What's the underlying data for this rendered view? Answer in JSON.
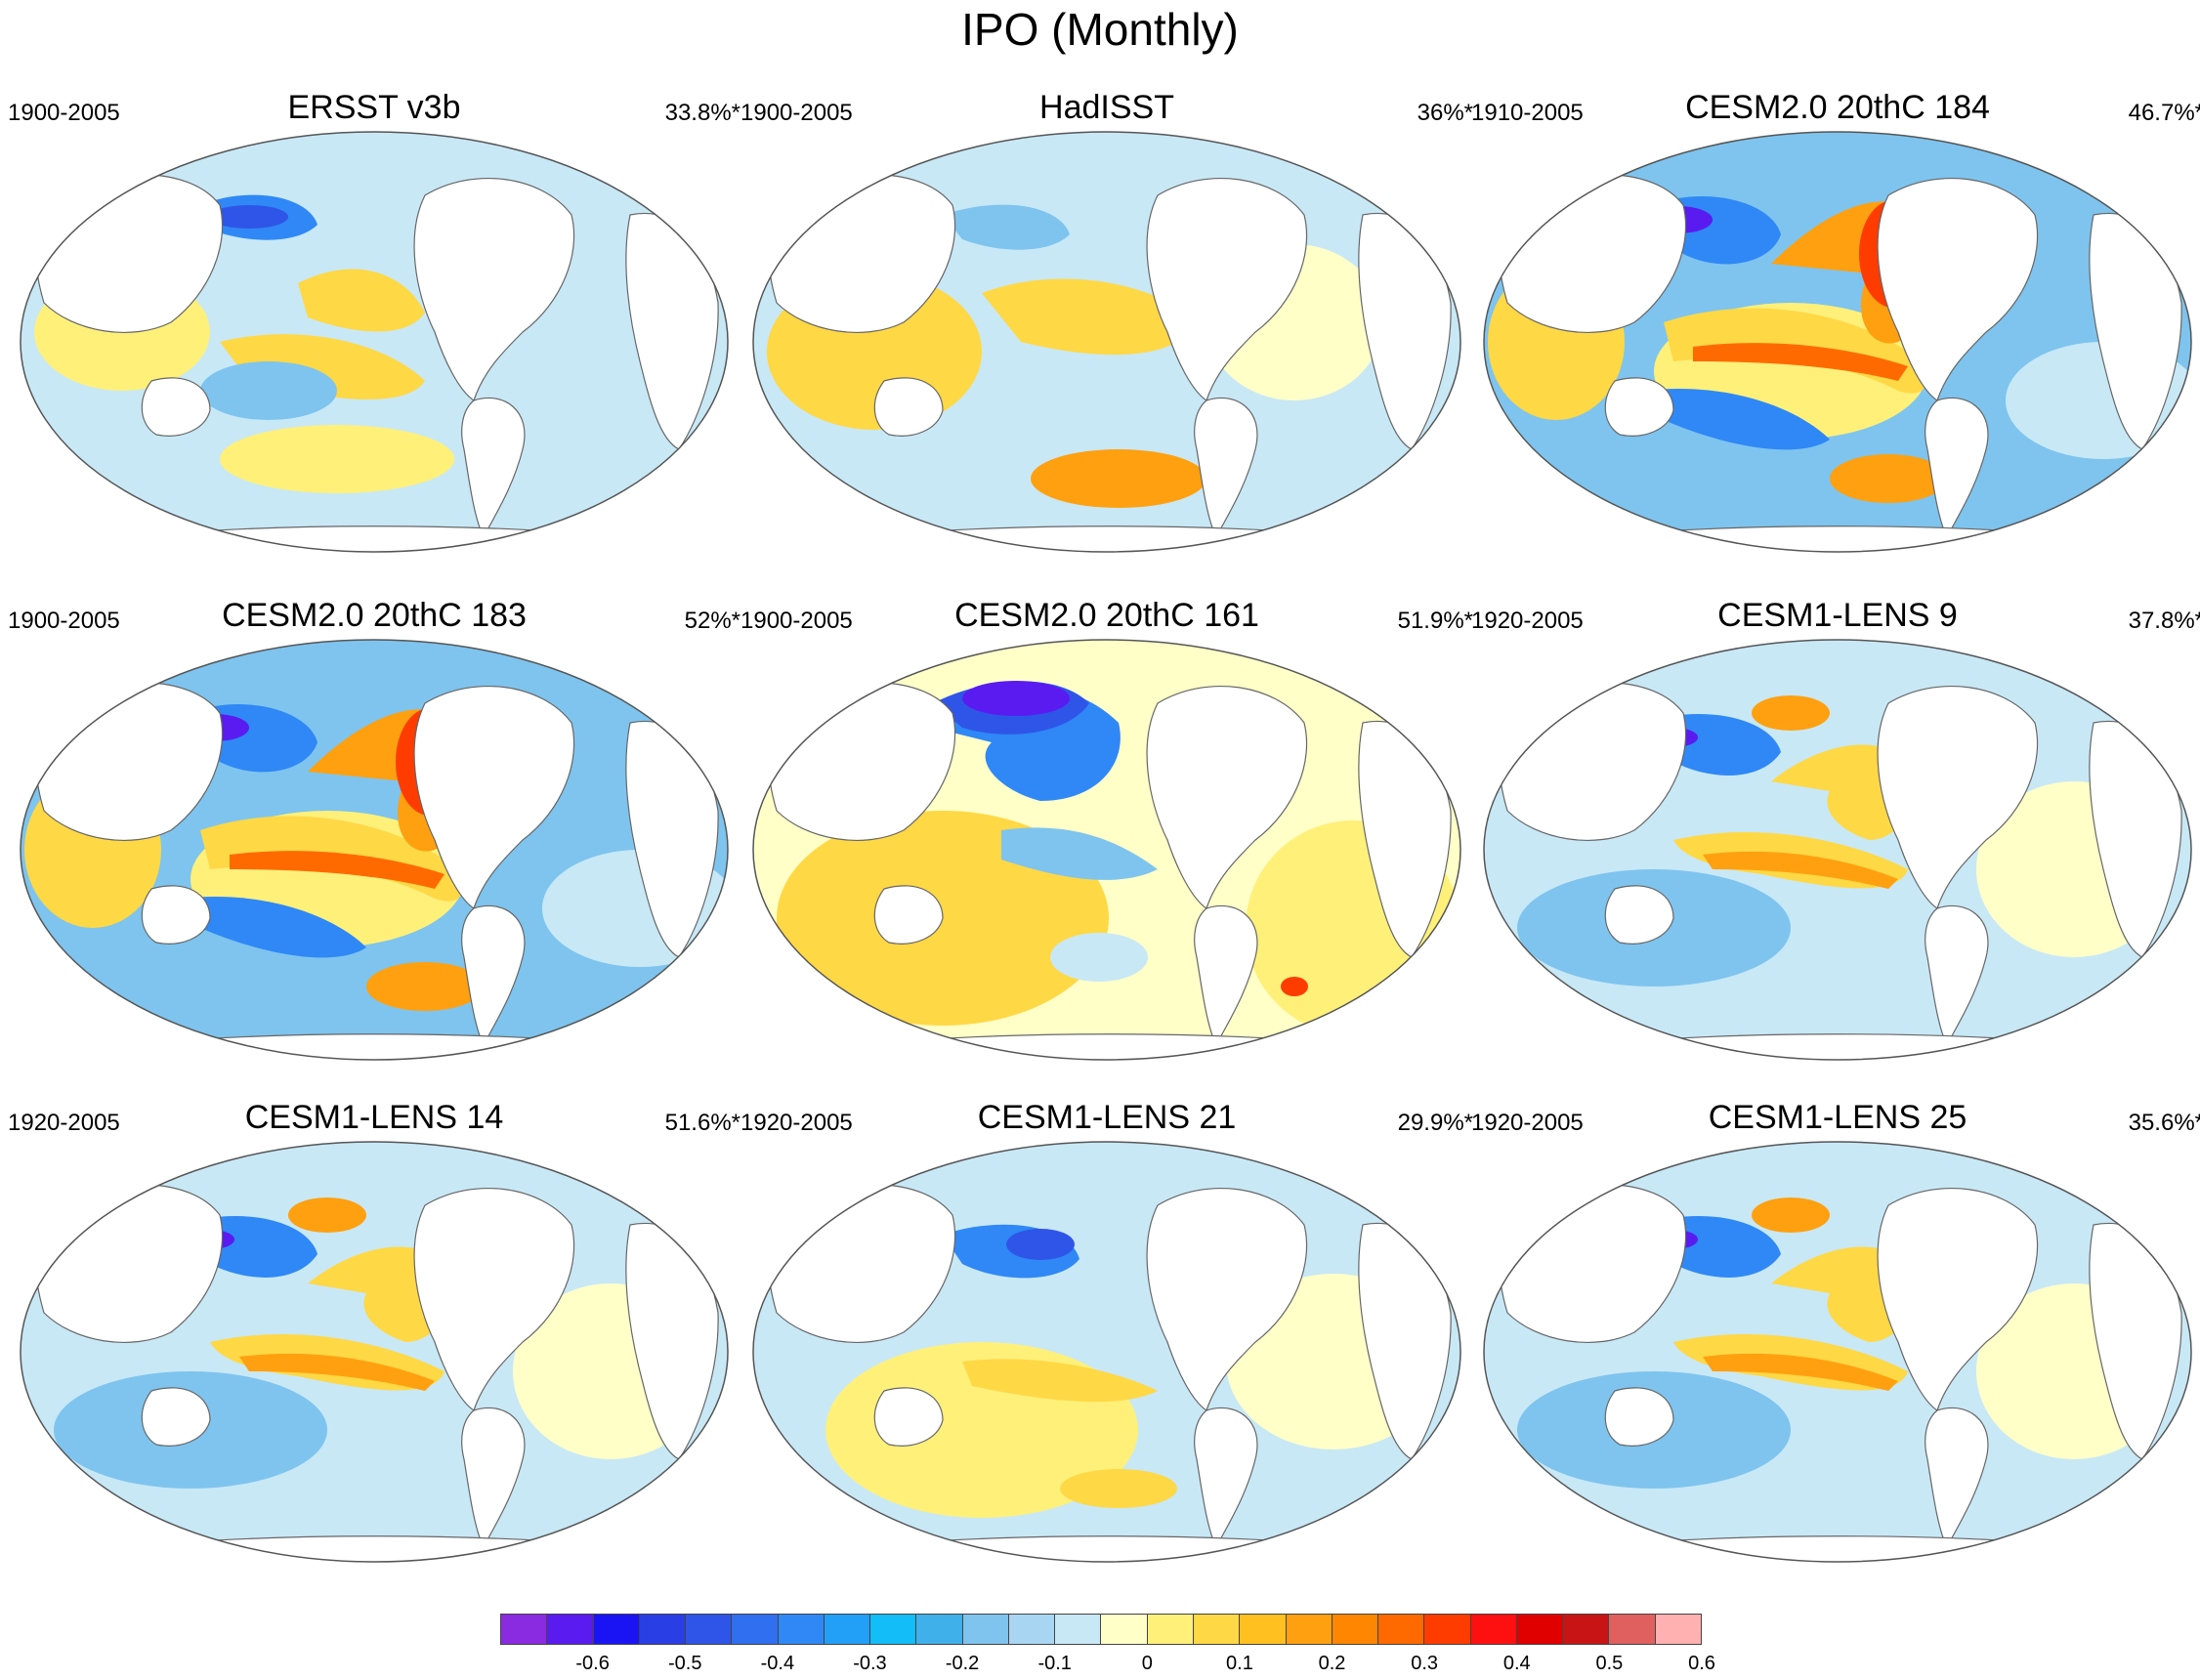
{
  "figure": {
    "title": "IPO (Monthly)"
  },
  "panels": [
    {
      "title": "ERSST v3b",
      "period": "1900-2005",
      "variance": "33.8%*",
      "pattern": "obs1"
    },
    {
      "title": "HadISST",
      "period": "1900-2005",
      "variance": "36%*",
      "pattern": "obs2"
    },
    {
      "title": "CESM2.0 20thC 184",
      "period": "1910-2005",
      "variance": "46.7%*",
      "pattern": "strong"
    },
    {
      "title": "CESM2.0 20thC 183",
      "period": "1900-2005",
      "variance": "52%*",
      "pattern": "strong"
    },
    {
      "title": "CESM2.0 20thC 161",
      "period": "1900-2005",
      "variance": "51.9%*",
      "pattern": "inverse"
    },
    {
      "title": "CESM1-LENS 9",
      "period": "1920-2005",
      "variance": "37.8%*",
      "pattern": "moderate"
    },
    {
      "title": "CESM1-LENS 14",
      "period": "1920-2005",
      "variance": "51.6%*",
      "pattern": "moderate"
    },
    {
      "title": "CESM1-LENS 21",
      "period": "1920-2005",
      "variance": "29.9%*",
      "pattern": "weak"
    },
    {
      "title": "CESM1-LENS 25",
      "period": "1920-2005",
      "variance": "35.6%*",
      "pattern": "moderate"
    }
  ],
  "colorbar": {
    "colors": [
      "#8a2be2",
      "#5a1bf0",
      "#1a14f5",
      "#2a3ee6",
      "#2f55e8",
      "#2f6ff0",
      "#2f88f5",
      "#229ff7",
      "#12bdf8",
      "#3fb0ea",
      "#7ec4ee",
      "#a8d6f2",
      "#c8e8f6",
      "#ffffc8",
      "#fff07a",
      "#ffd845",
      "#ffc020",
      "#ffa010",
      "#ff8600",
      "#ff6a00",
      "#ff3c00",
      "#ff1010",
      "#e00000",
      "#c81414",
      "#e06060",
      "#ffb0b0"
    ],
    "ticks": [
      "-0.6",
      "-0.5",
      "-0.4",
      "-0.3",
      "-0.2",
      "-0.1",
      "0",
      "0.1",
      "0.2",
      "0.3",
      "0.4",
      "0.5",
      "0.6"
    ],
    "tick_boundaries": [
      2,
      5,
      8,
      11,
      14,
      17,
      20,
      23,
      26,
      29,
      32,
      35,
      38
    ]
  }
}
